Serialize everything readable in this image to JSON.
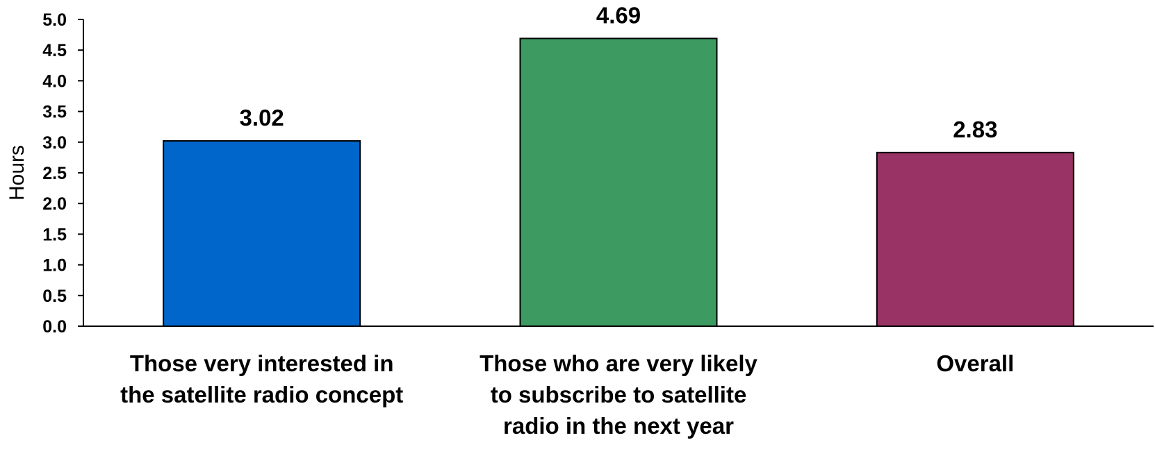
{
  "chart_data": {
    "type": "bar",
    "title": "",
    "xlabel": "",
    "ylabel": "Hours",
    "ylim": [
      0,
      5.0
    ],
    "yticks": [
      "0.0",
      "0.5",
      "1.0",
      "1.5",
      "2.0",
      "2.5",
      "3.0",
      "3.5",
      "4.0",
      "4.5",
      "5.0"
    ],
    "grid": false,
    "legend": "none",
    "categories": [
      [
        "Those very interested in",
        "the satellite radio concept"
      ],
      [
        "Those who are very likely",
        "to subscribe to satellite",
        "radio in the next year"
      ],
      [
        "Overall"
      ]
    ],
    "values": [
      3.02,
      4.69,
      2.83
    ],
    "data_labels": [
      "3.02",
      "4.69",
      "2.83"
    ],
    "colors": [
      "#0066CC",
      "#3D9B62",
      "#993366"
    ]
  }
}
